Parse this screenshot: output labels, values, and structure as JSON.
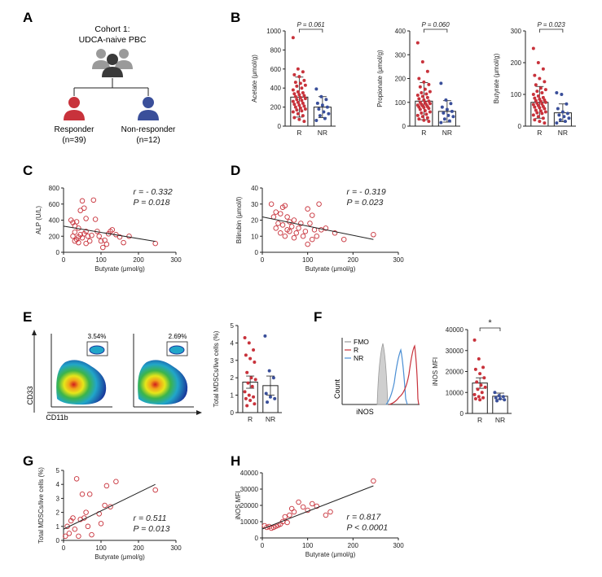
{
  "colors": {
    "red": "#c8323b",
    "blue": "#3a4f9a",
    "dark": "#3a3a3a",
    "grey": "#9a9a9a",
    "flowblue": "#4b8fd4"
  },
  "panels": {
    "A": "A",
    "B": "B",
    "C": "C",
    "D": "D",
    "E": "E",
    "F": "F",
    "G": "G",
    "H": "H"
  },
  "cohort": {
    "title_line1": "Cohort 1:",
    "title_line2": "UDCA-naive PBC",
    "responder": "Responder",
    "responder_n": "(n=39)",
    "nonresponder": "Non-responder",
    "nonresponder_n": "(n=12)"
  },
  "flow": {
    "gate1_pct": "3.54%",
    "gate2_pct": "2.69%",
    "xlabel": "CD11b",
    "ylabel": "CD33",
    "hist_xlabel": "iNOS",
    "hist_ylabel": "Count",
    "legend": [
      "FMO",
      "R",
      "NR"
    ]
  },
  "chart_data": [
    {
      "id": "B1",
      "type": "bar",
      "categories": [
        "R",
        "NR"
      ],
      "ylabel": "Acetate (μmol/g)",
      "ylim": [
        0,
        1000
      ],
      "yticks": [
        0,
        200,
        400,
        600,
        800,
        1000
      ],
      "means": [
        305,
        200
      ],
      "sd": [
        210,
        110
      ],
      "pvalue": "P = 0.061",
      "points": [
        [
          930,
          600,
          570,
          540,
          520,
          480,
          460,
          450,
          430,
          420,
          400,
          380,
          360,
          350,
          340,
          330,
          320,
          310,
          300,
          290,
          280,
          270,
          260,
          250,
          240,
          230,
          220,
          210,
          200,
          190,
          180,
          170,
          160,
          150,
          130,
          110,
          90,
          70,
          50
        ],
        [
          390,
          310,
          280,
          240,
          220,
          200,
          180,
          150,
          130,
          110,
          80,
          60
        ]
      ]
    },
    {
      "id": "B2",
      "type": "bar",
      "categories": [
        "R",
        "NR"
      ],
      "ylabel": "Propionate (μmol/g)",
      "ylim": [
        0,
        400
      ],
      "yticks": [
        0,
        100,
        200,
        300,
        400
      ],
      "means": [
        105,
        62
      ],
      "sd": [
        78,
        45
      ],
      "pvalue": "P = 0.060",
      "points": [
        [
          350,
          270,
          230,
          200,
          185,
          175,
          165,
          155,
          145,
          140,
          135,
          130,
          125,
          120,
          115,
          110,
          105,
          100,
          98,
          95,
          92,
          90,
          88,
          85,
          82,
          80,
          78,
          75,
          70,
          65,
          60,
          55,
          50,
          45,
          40,
          35,
          30,
          25,
          20
        ],
        [
          180,
          110,
          95,
          80,
          70,
          62,
          55,
          45,
          40,
          30,
          22,
          15
        ]
      ]
    },
    {
      "id": "B3",
      "type": "bar",
      "categories": [
        "R",
        "NR"
      ],
      "ylabel": "Butyrate (μmol/g)",
      "ylim": [
        0,
        300
      ],
      "yticks": [
        0,
        100,
        200,
        300
      ],
      "means": [
        75,
        42
      ],
      "sd": [
        50,
        28
      ],
      "pvalue": "P = 0.023",
      "points": [
        [
          245,
          200,
          180,
          160,
          150,
          140,
          130,
          120,
          115,
          110,
          105,
          100,
          95,
          90,
          88,
          85,
          82,
          80,
          78,
          75,
          72,
          70,
          68,
          65,
          62,
          60,
          58,
          55,
          50,
          48,
          45,
          42,
          40,
          35,
          30,
          25,
          20,
          15,
          10
        ],
        [
          105,
          100,
          70,
          55,
          45,
          40,
          35,
          30,
          25,
          20,
          15,
          10
        ]
      ]
    },
    {
      "id": "C",
      "type": "scatter",
      "xlabel": "Butyrate (μmol/g)",
      "ylabel": "ALP (U/L)",
      "xlim": [
        0,
        300
      ],
      "ylim": [
        0,
        800
      ],
      "xticks": [
        0,
        100,
        200,
        300
      ],
      "yticks": [
        0,
        200,
        400,
        600,
        800
      ],
      "r": "r = - 0.332",
      "p": "P =  0.018",
      "fit": [
        [
          0,
          325
        ],
        [
          245,
          135
        ]
      ],
      "points": [
        [
          20,
          400
        ],
        [
          25,
          370
        ],
        [
          30,
          330
        ],
        [
          35,
          380
        ],
        [
          40,
          300
        ],
        [
          45,
          520
        ],
        [
          50,
          640
        ],
        [
          55,
          550
        ],
        [
          60,
          420
        ],
        [
          45,
          220
        ],
        [
          30,
          250
        ],
        [
          25,
          200
        ],
        [
          35,
          160
        ],
        [
          40,
          120
        ],
        [
          50,
          180
        ],
        [
          55,
          230
        ],
        [
          60,
          260
        ],
        [
          65,
          200
        ],
        [
          70,
          140
        ],
        [
          75,
          210
        ],
        [
          80,
          650
        ],
        [
          85,
          410
        ],
        [
          90,
          260
        ],
        [
          95,
          200
        ],
        [
          100,
          140
        ],
        [
          105,
          60
        ],
        [
          110,
          150
        ],
        [
          115,
          100
        ],
        [
          120,
          230
        ],
        [
          125,
          260
        ],
        [
          130,
          280
        ],
        [
          140,
          220
        ],
        [
          150,
          190
        ],
        [
          160,
          120
        ],
        [
          175,
          200
        ],
        [
          245,
          110
        ],
        [
          30,
          140
        ],
        [
          40,
          190
        ],
        [
          60,
          110
        ]
      ]
    },
    {
      "id": "D",
      "type": "scatter",
      "xlabel": "Butyrate (μmol/g)",
      "ylabel": "Bilirubin (μmol/l)",
      "xlim": [
        0,
        300
      ],
      "ylim": [
        0,
        40
      ],
      "xticks": [
        0,
        100,
        200,
        300
      ],
      "yticks": [
        0,
        10,
        20,
        30,
        40
      ],
      "r": "r = - 0.319",
      "p": "P =  0.023",
      "fit": [
        [
          0,
          22
        ],
        [
          245,
          8
        ]
      ],
      "points": [
        [
          20,
          30
        ],
        [
          25,
          22
        ],
        [
          30,
          25
        ],
        [
          35,
          18
        ],
        [
          40,
          24
        ],
        [
          45,
          28
        ],
        [
          50,
          29
        ],
        [
          55,
          22
        ],
        [
          60,
          19
        ],
        [
          65,
          16
        ],
        [
          70,
          20
        ],
        [
          75,
          12
        ],
        [
          80,
          15
        ],
        [
          85,
          18
        ],
        [
          90,
          10
        ],
        [
          95,
          13
        ],
        [
          100,
          27
        ],
        [
          105,
          18
        ],
        [
          110,
          23
        ],
        [
          115,
          14
        ],
        [
          120,
          10
        ],
        [
          125,
          30
        ],
        [
          130,
          14
        ],
        [
          140,
          15
        ],
        [
          160,
          12
        ],
        [
          180,
          8
        ],
        [
          245,
          11
        ],
        [
          30,
          15
        ],
        [
          40,
          12
        ],
        [
          50,
          10
        ],
        [
          60,
          13
        ],
        [
          70,
          9
        ],
        [
          100,
          5
        ],
        [
          110,
          8
        ],
        [
          45,
          17
        ],
        [
          55,
          14
        ]
      ]
    },
    {
      "id": "E",
      "type": "bar",
      "categories": [
        "R",
        "NR"
      ],
      "ylabel": "Total MDSCs/live cells (%)",
      "ylim": [
        0,
        5
      ],
      "yticks": [
        0,
        1,
        2,
        3,
        4,
        5
      ],
      "means": [
        1.75,
        1.55
      ],
      "sd": [
        0.35,
        0.55
      ],
      "points": [
        [
          4.3,
          4.0,
          3.6,
          3.3,
          3.1,
          2.9,
          2.3,
          2.0,
          1.9,
          1.7,
          1.5,
          1.2,
          1.0,
          0.9,
          0.8,
          0.7,
          0.5,
          0.4
        ],
        [
          4.4,
          2.4,
          2.0,
          1.1,
          0.9,
          0.8,
          0.6
        ]
      ]
    },
    {
      "id": "F",
      "type": "bar",
      "categories": [
        "R",
        "NR"
      ],
      "ylabel": "iNOS MFI",
      "ylim": [
        0,
        40000
      ],
      "yticks": [
        0,
        10000,
        20000,
        30000,
        40000
      ],
      "means": [
        14500,
        8200
      ],
      "sd": [
        2500,
        1500
      ],
      "pvalue": "*",
      "points": [
        [
          35000,
          26000,
          22000,
          21000,
          19000,
          17000,
          15000,
          13500,
          12500,
          11500,
          10000,
          9000,
          8000,
          7500,
          7000,
          6500
        ],
        [
          10000,
          8500,
          8000,
          7500,
          7000,
          6500,
          6000
        ]
      ]
    },
    {
      "id": "G",
      "type": "scatter",
      "xlabel": "Butyrate (μmol/g)",
      "ylabel": "Total MDSCs/live cells (%)",
      "xlim": [
        0,
        300
      ],
      "ylim": [
        0,
        5
      ],
      "xticks": [
        0,
        100,
        200,
        300
      ],
      "yticks": [
        0,
        1,
        2,
        3,
        4,
        5
      ],
      "r": "r = 0.511",
      "p": "P = 0.013",
      "fit": [
        [
          0,
          0.8
        ],
        [
          245,
          4.0
        ]
      ],
      "points": [
        [
          5,
          0.3
        ],
        [
          10,
          1.0
        ],
        [
          15,
          0.5
        ],
        [
          20,
          1.4
        ],
        [
          25,
          1.6
        ],
        [
          30,
          0.8
        ],
        [
          35,
          4.4
        ],
        [
          40,
          0.3
        ],
        [
          45,
          1.5
        ],
        [
          50,
          3.3
        ],
        [
          55,
          1.6
        ],
        [
          60,
          2.0
        ],
        [
          65,
          1.0
        ],
        [
          70,
          3.3
        ],
        [
          75,
          0.4
        ],
        [
          95,
          1.9
        ],
        [
          100,
          1.2
        ],
        [
          110,
          2.5
        ],
        [
          115,
          3.9
        ],
        [
          125,
          2.4
        ],
        [
          140,
          4.2
        ],
        [
          245,
          3.6
        ]
      ]
    },
    {
      "id": "H",
      "type": "scatter",
      "xlabel": "Butyrate (μmol/g)",
      "ylabel": "iNOS MFI",
      "xlim": [
        0,
        300
      ],
      "ylim": [
        0,
        40000
      ],
      "xticks": [
        0,
        100,
        200,
        300
      ],
      "yticks": [
        0,
        10000,
        20000,
        30000,
        40000
      ],
      "r": "r = 0.817",
      "p": "P < 0.0001",
      "fit": [
        [
          0,
          5500
        ],
        [
          245,
          32000
        ]
      ],
      "points": [
        [
          5,
          7500
        ],
        [
          10,
          6500
        ],
        [
          15,
          7000
        ],
        [
          20,
          6000
        ],
        [
          25,
          6500
        ],
        [
          30,
          7200
        ],
        [
          35,
          7800
        ],
        [
          40,
          8500
        ],
        [
          45,
          10000
        ],
        [
          50,
          13000
        ],
        [
          55,
          9500
        ],
        [
          60,
          14000
        ],
        [
          65,
          18000
        ],
        [
          70,
          16000
        ],
        [
          80,
          22000
        ],
        [
          90,
          19000
        ],
        [
          100,
          17000
        ],
        [
          110,
          21000
        ],
        [
          120,
          19500
        ],
        [
          140,
          14000
        ],
        [
          150,
          16000
        ],
        [
          245,
          35000
        ]
      ]
    }
  ]
}
